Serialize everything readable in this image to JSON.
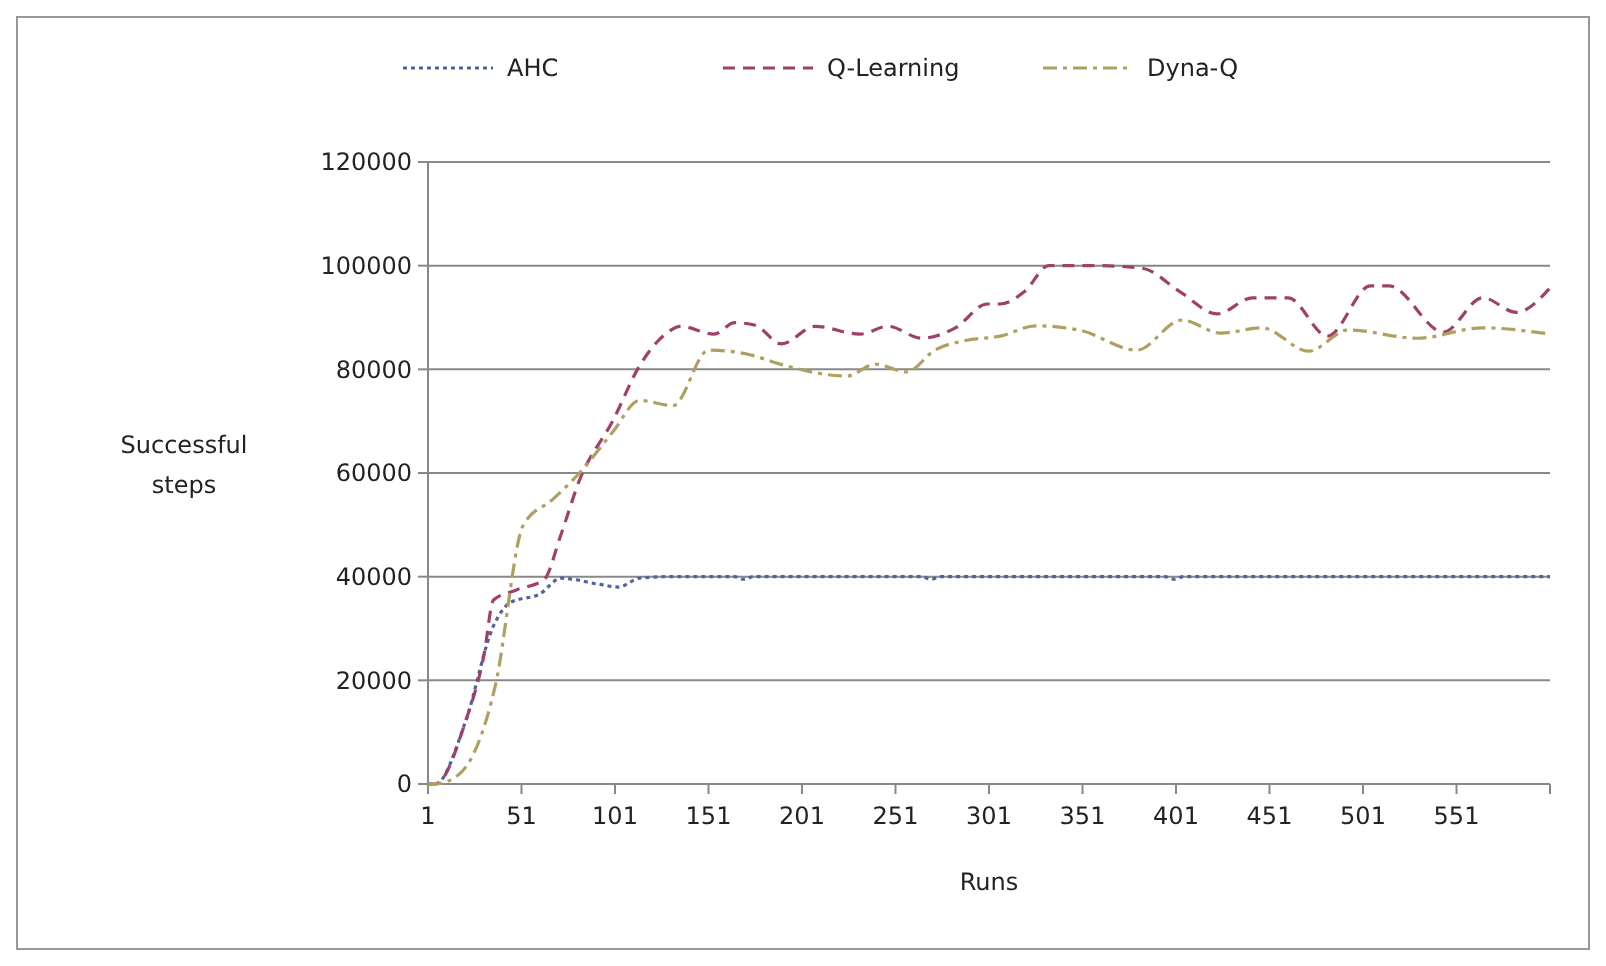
{
  "chart_data": {
    "type": "line",
    "xlabel": "Runs",
    "ylabel": "Successful steps",
    "xlim": [
      1,
      601
    ],
    "xticks": [
      1,
      51,
      101,
      151,
      201,
      251,
      301,
      351,
      401,
      451,
      501,
      551
    ],
    "ylim": [
      0,
      120000
    ],
    "yticks": [
      0,
      20000,
      40000,
      60000,
      80000,
      100000,
      120000
    ],
    "grid": "y",
    "legend": "top",
    "series": [
      {
        "name": "AHC",
        "color": "#5060a0",
        "line_style": "dotted",
        "x": [
          1,
          5,
          21,
          36,
          45,
          61,
          72,
          93,
          103,
          114,
          130,
          165,
          170,
          175,
          200,
          265,
          270,
          275,
          300,
          395,
          400,
          405,
          601
        ],
        "values": [
          0,
          0,
          12000,
          30500,
          35000,
          36700,
          39700,
          38500,
          38000,
          39700,
          40000,
          40000,
          39500,
          40000,
          40000,
          40000,
          39500,
          40000,
          40000,
          40000,
          39500,
          40000,
          40000
        ]
      },
      {
        "name": "Q-Learning",
        "color": "#a0406a",
        "line_style": "dashed",
        "x": [
          1,
          5,
          21,
          31,
          36,
          48,
          63,
          72,
          82,
          100,
          114,
          128,
          136,
          154,
          165,
          176,
          190,
          208,
          232,
          247,
          265,
          283,
          300,
          307,
          320,
          333,
          358,
          383,
          403,
          423,
          442,
          461,
          482,
          505,
          515,
          544,
          565,
          583,
          601
        ],
        "values": [
          0,
          0,
          12000,
          25000,
          35500,
          37400,
          39400,
          48000,
          58600,
          70200,
          80600,
          86800,
          88300,
          86800,
          89000,
          88500,
          84900,
          88300,
          86800,
          88300,
          86000,
          88000,
          92600,
          92600,
          95000,
          100000,
          100000,
          99500,
          95000,
          90700,
          93800,
          93800,
          86400,
          96100,
          96100,
          87200,
          93800,
          91000,
          95700
        ]
      },
      {
        "name": "Dyna-Q",
        "color": "#b0a060",
        "line_style": "dashdot",
        "x": [
          1,
          5,
          18,
          37,
          52,
          68,
          82,
          100,
          114,
          132,
          151,
          171,
          193,
          225,
          240,
          257,
          272,
          289,
          307,
          326,
          350,
          380,
          404,
          425,
          447,
          472,
          493,
          530,
          565,
          601
        ],
        "values": [
          0,
          0,
          2000,
          19000,
          50000,
          55000,
          60000,
          68000,
          74000,
          73000,
          83700,
          83000,
          80600,
          78700,
          81000,
          79500,
          83700,
          85600,
          86400,
          88400,
          87500,
          83700,
          89500,
          87000,
          88000,
          83500,
          87600,
          86000,
          88000,
          86800
        ]
      }
    ]
  }
}
